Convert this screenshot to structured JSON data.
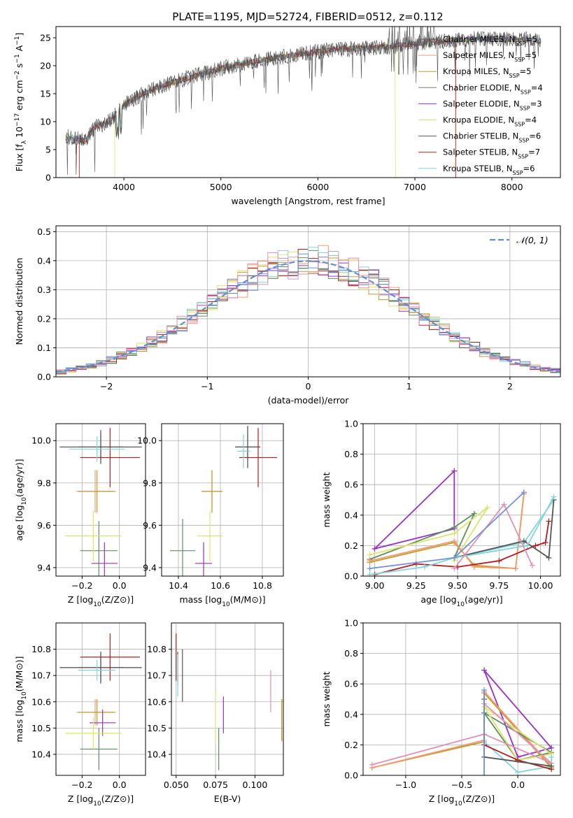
{
  "figure": {
    "title": "PLATE=1195, MJD=52724, FIBERID=0512, z=0.112"
  },
  "colors": {
    "Chabrier MILES": "#4a4a4a",
    "Salpeter MILES": "#f39a6e",
    "Kroupa MILES": "#c69a2a",
    "Chabrier ELODIE": "#5e8f5e",
    "Salpeter ELODIE": "#9b30c9",
    "Kroupa ELODIE": "#dbe56a",
    "Chabrier STELIB": "#555555",
    "Salpeter STELIB": "#b71c1c",
    "Kroupa STELIB": "#7fd6db",
    "extra_blue": "#6f8fe0",
    "extra_pink": "#e58fb8",
    "extra_orange": "#e07b30",
    "gaussian": "#5b8fd6"
  },
  "chart_data": [
    {
      "id": "spectrum",
      "type": "line",
      "xlabel": "wavelength [Angstrom, rest frame]",
      "ylabel": "Flux [f_λ 10^-17 erg cm^-2 s^-1 A^-1]",
      "xlim": [
        3300,
        8500
      ],
      "ylim": [
        0,
        27
      ],
      "xticks": [
        4000,
        5000,
        6000,
        7000,
        8000
      ],
      "yticks": [
        0,
        5,
        10,
        15,
        20,
        25
      ],
      "legend_position": "top-right",
      "series_names": [
        "Chabrier MILES",
        "Salpeter MILES",
        "Kroupa MILES",
        "Chabrier ELODIE",
        "Salpeter ELODIE",
        "Kroupa ELODIE",
        "Chabrier STELIB",
        "Salpeter STELIB",
        "Kroupa STELIB"
      ],
      "legend": [
        {
          "name": "Chabrier MILES",
          "nssp": "5"
        },
        {
          "name": "Salpeter MILES",
          "nssp": "5"
        },
        {
          "name": "Kroupa MILES",
          "nssp": "5"
        },
        {
          "name": "Chabrier ELODIE",
          "nssp": "4"
        },
        {
          "name": "Salpeter ELODIE",
          "nssp": "3"
        },
        {
          "name": "Kroupa ELODIE",
          "nssp": "4"
        },
        {
          "name": "Chabrier STELIB",
          "nssp": "6"
        },
        {
          "name": "Salpeter STELIB",
          "nssp": "7"
        },
        {
          "name": "Kroupa STELIB",
          "nssp": "6"
        }
      ],
      "continuum": [
        [
          3400,
          7.5
        ],
        [
          3600,
          6.5
        ],
        [
          3700,
          9
        ],
        [
          3800,
          9.5
        ],
        [
          3900,
          11
        ],
        [
          4000,
          13
        ],
        [
          4200,
          15
        ],
        [
          4400,
          16.5
        ],
        [
          4600,
          17.5
        ],
        [
          4800,
          18.5
        ],
        [
          5000,
          19.5
        ],
        [
          5200,
          20.2
        ],
        [
          5400,
          21
        ],
        [
          5600,
          21.5
        ],
        [
          5800,
          22
        ],
        [
          6000,
          22.5
        ],
        [
          6200,
          23
        ],
        [
          6400,
          23
        ],
        [
          6600,
          23.2
        ],
        [
          6800,
          23.5
        ],
        [
          7000,
          24
        ],
        [
          7200,
          24.2
        ],
        [
          7400,
          24.5
        ],
        [
          7600,
          24.8
        ],
        [
          7800,
          24.8
        ],
        [
          8000,
          24.8
        ],
        [
          8300,
          24.5
        ]
      ],
      "cutoffs": [
        {
          "series": "Salpeter MILES",
          "start": 3540,
          "end": 7420
        },
        {
          "series": "Kroupa ELODIE",
          "start": 3905,
          "end": 6800
        },
        {
          "series": "Salpeter STELIB",
          "start": 3540,
          "end": 7420
        }
      ]
    },
    {
      "id": "residuals",
      "type": "histogram",
      "xlabel": "(data-model)/error",
      "ylabel": "Normed distribution",
      "xlim": [
        -2.5,
        2.5
      ],
      "ylim": [
        0,
        0.52
      ],
      "xticks": [
        -2,
        -1,
        0,
        1,
        2
      ],
      "yticks": [
        0.0,
        0.1,
        0.2,
        0.3,
        0.4,
        0.5
      ],
      "legend_position": "top-right",
      "gaussian_label": "𝒩(0, 1)",
      "bin_width": 0.1,
      "grid": true
    },
    {
      "id": "age_vs_Z",
      "type": "scatter",
      "xlabel": "Z [log10(Z/Z⊙)]",
      "ylabel": "age  [log10(age/yr)]",
      "xlim": [
        -0.34,
        0.14
      ],
      "ylim": [
        9.36,
        10.08
      ],
      "xticks": [
        -0.2,
        0.0
      ],
      "yticks": [
        9.4,
        9.6,
        9.8,
        10.0
      ],
      "points": [
        {
          "x": -0.1,
          "y": 9.97,
          "xerr": 0.22,
          "yerr": 0.08,
          "series": "Chabrier MILES"
        },
        {
          "x": -0.13,
          "y": 9.76,
          "xerr": 0.1,
          "yerr": 0.1,
          "series": "Salpeter MILES"
        },
        {
          "x": -0.12,
          "y": 9.76,
          "xerr": 0.1,
          "yerr": 0.1,
          "series": "Kroupa MILES"
        },
        {
          "x": -0.11,
          "y": 9.48,
          "xerr": 0.1,
          "yerr": 0.14,
          "series": "Chabrier ELODIE"
        },
        {
          "x": -0.08,
          "y": 9.42,
          "xerr": 0.07,
          "yerr": 0.1,
          "series": "Salpeter ELODIE"
        },
        {
          "x": -0.14,
          "y": 9.55,
          "xerr": 0.15,
          "yerr": 0.12,
          "series": "Kroupa ELODIE"
        },
        {
          "x": -0.1,
          "y": 9.97,
          "xerr": 0.12,
          "yerr": 0.06,
          "series": "Chabrier STELIB"
        },
        {
          "x": -0.05,
          "y": 9.92,
          "xerr": 0.16,
          "yerr": 0.14,
          "series": "Salpeter STELIB"
        },
        {
          "x": -0.12,
          "y": 9.96,
          "xerr": 0.15,
          "yerr": 0.06,
          "series": "Kroupa STELIB"
        }
      ]
    },
    {
      "id": "age_vs_mass",
      "type": "scatter",
      "xlabel": "mass [log10(M/M⊙)]",
      "ylabel": "",
      "xlim": [
        10.32,
        10.9
      ],
      "ylim": [
        9.36,
        10.08
      ],
      "xticks": [
        10.4,
        10.6,
        10.8
      ],
      "yticks": [
        9.4,
        9.6,
        9.8,
        10.0
      ],
      "points": [
        {
          "x": 10.73,
          "y": 9.97,
          "xerr": 0.06,
          "yerr": 0.1,
          "series": "Chabrier MILES"
        },
        {
          "x": 10.56,
          "y": 9.76,
          "xerr": 0.05,
          "yerr": 0.1,
          "series": "Salpeter MILES"
        },
        {
          "x": 10.56,
          "y": 9.76,
          "xerr": 0.05,
          "yerr": 0.1,
          "series": "Kroupa MILES"
        },
        {
          "x": 10.42,
          "y": 9.48,
          "xerr": 0.06,
          "yerr": 0.15,
          "series": "Chabrier ELODIE"
        },
        {
          "x": 10.52,
          "y": 9.42,
          "xerr": 0.04,
          "yerr": 0.1,
          "series": "Salpeter ELODIE"
        },
        {
          "x": 10.55,
          "y": 9.55,
          "xerr": 0.06,
          "yerr": 0.12,
          "series": "Kroupa ELODIE"
        },
        {
          "x": 10.73,
          "y": 9.97,
          "xerr": 0.06,
          "yerr": 0.06,
          "series": "Chabrier STELIB"
        },
        {
          "x": 10.78,
          "y": 9.92,
          "xerr": 0.09,
          "yerr": 0.14,
          "series": "Salpeter STELIB"
        },
        {
          "x": 10.71,
          "y": 9.95,
          "xerr": 0.03,
          "yerr": 0.08,
          "series": "Kroupa STELIB"
        }
      ]
    },
    {
      "id": "mass_weight_vs_age",
      "type": "line",
      "xlabel": "age  [log10(age/yr)]",
      "ylabel": "mass weight",
      "xlim": [
        8.93,
        10.12
      ],
      "ylim": [
        0,
        1
      ],
      "xticks": [
        9.0,
        9.25,
        9.5,
        9.75,
        10.0
      ],
      "yticks": [
        0.0,
        0.2,
        0.4,
        0.6,
        0.8,
        1.0
      ],
      "series": [
        {
          "series": "Salpeter ELODIE",
          "x": [
            9.48,
            9.0,
            9.48,
            9.48
          ],
          "y": [
            0.69,
            0.18,
            0.31,
            0.69
          ]
        },
        {
          "series": "Chabrier ELODIE",
          "x": [
            8.97,
            9.48,
            9.6,
            9.48
          ],
          "y": [
            0.11,
            0.32,
            0.41,
            0.12
          ]
        },
        {
          "series": "Kroupa ELODIE",
          "x": [
            8.97,
            9.48,
            9.68,
            9.48
          ],
          "y": [
            0.14,
            0.28,
            0.45,
            0.1
          ]
        },
        {
          "series": "Kroupa MILES",
          "x": [
            8.97,
            9.48,
            9.6,
            9.85,
            9.9
          ],
          "y": [
            0.09,
            0.22,
            0.07,
            0.05,
            0.54
          ]
        },
        {
          "series": "Salpeter MILES",
          "x": [
            8.97,
            9.48,
            9.6,
            9.85,
            9.9
          ],
          "y": [
            0.1,
            0.23,
            0.06,
            0.05,
            0.55
          ]
        },
        {
          "series": "Salpeter STELIB",
          "x": [
            9.0,
            9.25,
            9.5,
            9.75,
            9.97,
            10.03,
            10.05
          ],
          "y": [
            0.01,
            0.08,
            0.06,
            0.1,
            0.2,
            0.22,
            0.36
          ]
        },
        {
          "series": "Kroupa STELIB",
          "x": [
            8.97,
            9.3,
            9.48,
            9.9,
            10.08
          ],
          "y": [
            0.01,
            0.06,
            0.12,
            0.22,
            0.5
          ]
        },
        {
          "series": "Chabrier STELIB",
          "x": [
            9.48,
            9.9,
            10.05,
            10.08
          ],
          "y": [
            0.12,
            0.23,
            0.12,
            0.5
          ]
        },
        {
          "series": "Kroupa STELIB",
          "x": [
            9.48,
            9.92,
            10.08
          ],
          "y": [
            0.12,
            0.2,
            0.52
          ]
        },
        {
          "series": "extra_pink",
          "x": [
            9.48,
            9.78,
            9.95
          ],
          "y": [
            0.05,
            0.47,
            0.07
          ]
        },
        {
          "series": "extra_blue",
          "x": [
            8.97,
            9.48,
            9.9
          ],
          "y": [
            0.05,
            0.12,
            0.55
          ]
        }
      ]
    },
    {
      "id": "mass_vs_Z",
      "type": "scatter",
      "xlabel": "Z [log10(Z/Z⊙)]",
      "ylabel": "mass [log10(M/M⊙)]",
      "xlim": [
        -0.34,
        0.14
      ],
      "ylim": [
        10.32,
        10.9
      ],
      "xticks": [
        -0.2,
        0.0
      ],
      "yticks": [
        10.4,
        10.5,
        10.6,
        10.7,
        10.8
      ],
      "points": [
        {
          "x": -0.1,
          "y": 10.73,
          "xerr": 0.22,
          "yerr": 0.06,
          "series": "Chabrier MILES"
        },
        {
          "x": -0.13,
          "y": 10.56,
          "xerr": 0.1,
          "yerr": 0.05,
          "series": "Salpeter MILES"
        },
        {
          "x": -0.12,
          "y": 10.56,
          "xerr": 0.1,
          "yerr": 0.05,
          "series": "Kroupa MILES"
        },
        {
          "x": -0.11,
          "y": 10.42,
          "xerr": 0.1,
          "yerr": 0.08,
          "series": "Chabrier ELODIE"
        },
        {
          "x": -0.09,
          "y": 10.52,
          "xerr": 0.07,
          "yerr": 0.05,
          "series": "Salpeter ELODIE"
        },
        {
          "x": -0.14,
          "y": 10.48,
          "xerr": 0.15,
          "yerr": 0.06,
          "series": "Kroupa ELODIE"
        },
        {
          "x": -0.1,
          "y": 10.73,
          "xerr": 0.12,
          "yerr": 0.06,
          "series": "Chabrier STELIB"
        },
        {
          "x": -0.05,
          "y": 10.77,
          "xerr": 0.16,
          "yerr": 0.09,
          "series": "Salpeter STELIB"
        },
        {
          "x": -0.12,
          "y": 10.72,
          "xerr": 0.1,
          "yerr": 0.04,
          "series": "Kroupa STELIB"
        }
      ]
    },
    {
      "id": "mass_vs_ebv",
      "type": "scatter",
      "xlabel": "E(B-V)",
      "ylabel": "",
      "xlim": [
        0.047,
        0.118
      ],
      "ylim": [
        10.32,
        10.9
      ],
      "xticks": [
        0.05,
        0.075,
        0.1
      ],
      "yticks": [
        10.4,
        10.5,
        10.6,
        10.7,
        10.8
      ],
      "points": [
        {
          "x": 0.051,
          "y": 10.73,
          "yerr": 0.06,
          "series": "Chabrier MILES"
        },
        {
          "x": 0.117,
          "y": 10.53,
          "yerr": 0.08,
          "series": "Salpeter MILES"
        },
        {
          "x": 0.117,
          "y": 10.53,
          "yerr": 0.08,
          "series": "Kroupa MILES"
        },
        {
          "x": 0.077,
          "y": 10.42,
          "yerr": 0.08,
          "series": "Chabrier ELODIE"
        },
        {
          "x": 0.08,
          "y": 10.55,
          "yerr": 0.07,
          "series": "Salpeter ELODIE"
        },
        {
          "x": 0.075,
          "y": 10.54,
          "yerr": 0.1,
          "series": "Kroupa ELODIE"
        },
        {
          "x": 0.054,
          "y": 10.7,
          "yerr": 0.1,
          "series": "Chabrier STELIB"
        },
        {
          "x": 0.05,
          "y": 10.77,
          "yerr": 0.09,
          "series": "Salpeter STELIB"
        },
        {
          "x": 0.051,
          "y": 10.7,
          "yerr": 0.08,
          "series": "Kroupa STELIB"
        },
        {
          "x": 0.11,
          "y": 10.64,
          "yerr": 0.08,
          "series": "extra_pink"
        }
      ]
    },
    {
      "id": "mass_weight_vs_Z",
      "type": "line",
      "xlabel": "Z [log10(Z/Z⊙)]",
      "ylabel": "mass weight",
      "xlim": [
        -1.38,
        0.38
      ],
      "ylim": [
        0,
        1
      ],
      "xticks": [
        -1.0,
        -0.5,
        0.0
      ],
      "yticks": [
        0.0,
        0.2,
        0.4,
        0.6,
        0.8,
        1.0
      ],
      "series": [
        {
          "series": "Salpeter ELODIE",
          "x": [
            -0.3,
            0.0,
            0.3,
            -0.3
          ],
          "y": [
            0.69,
            0.12,
            0.18,
            0.69
          ]
        },
        {
          "series": "Kroupa MILES",
          "x": [
            -1.3,
            -0.3,
            -0.3,
            0.3
          ],
          "y": [
            0.05,
            0.22,
            0.54,
            0.05
          ]
        },
        {
          "series": "Salpeter MILES",
          "x": [
            -1.3,
            -0.3,
            -0.3,
            0.3
          ],
          "y": [
            0.05,
            0.23,
            0.55,
            0.06
          ]
        },
        {
          "series": "Chabrier ELODIE",
          "x": [
            -0.3,
            0.0,
            0.3,
            -0.3
          ],
          "y": [
            0.41,
            0.1,
            0.15,
            0.41
          ]
        },
        {
          "series": "Kroupa ELODIE",
          "x": [
            -0.3,
            0.0,
            0.3,
            -0.3
          ],
          "y": [
            0.45,
            0.1,
            0.14,
            0.45
          ]
        },
        {
          "series": "extra_pink",
          "x": [
            -1.3,
            -0.3,
            0.3,
            -0.3
          ],
          "y": [
            0.07,
            0.27,
            0.08,
            0.47
          ]
        },
        {
          "series": "Kroupa STELIB",
          "x": [
            -0.3,
            0.0,
            0.3,
            0.3
          ],
          "y": [
            0.22,
            0.02,
            0.06,
            0.12
          ]
        },
        {
          "series": "Salpeter STELIB",
          "x": [
            -0.3,
            0.0,
            0.3
          ],
          "y": [
            0.2,
            0.1,
            0.04
          ]
        },
        {
          "series": "Chabrier STELIB",
          "x": [
            -0.3,
            -0.3,
            0.3
          ],
          "y": [
            0.5,
            0.12,
            0.06
          ]
        },
        {
          "series": "extra_blue",
          "x": [
            -0.3,
            -0.3
          ],
          "y": [
            0.56,
            0.0
          ]
        }
      ]
    }
  ]
}
